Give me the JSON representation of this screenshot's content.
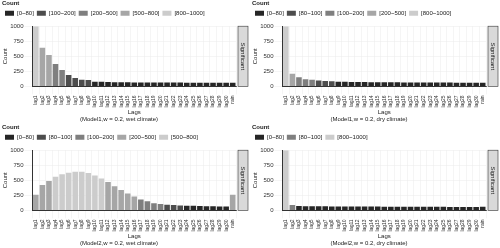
{
  "chart_data": [
    {
      "type": "bar",
      "title": "(Model1,w = 0.2, wet climate)",
      "x_label": "Lags",
      "y_label": "Count",
      "legend_title": "Count",
      "facet_label": "Significant",
      "legend": "top-left",
      "stacked": true,
      "grid": true,
      "categories": [
        "lag1",
        "lag2",
        "lag3",
        "lag4",
        "lag5",
        "lag6",
        "lag7",
        "lag8",
        "lag9",
        "lag10",
        "lag11",
        "lag12",
        "lag13",
        "lag14",
        "lag15",
        "lag16",
        "lag17",
        "lag18",
        "lag19",
        "lag20",
        "lag21",
        "lag22",
        "lag23",
        "lag24",
        "lag25",
        "lag26",
        "lag27",
        "lag28",
        "lag29",
        "lag30",
        "rain"
      ],
      "ylim": [
        0,
        1000
      ],
      "yticks": [
        0,
        250,
        500,
        750,
        1000
      ],
      "series": [
        {
          "name": "[0~80]",
          "color": "#262626",
          "values": [
            null,
            null,
            null,
            null,
            null,
            null,
            null,
            null,
            null,
            78,
            75,
            72,
            70,
            68,
            68,
            66,
            66,
            65,
            65,
            64,
            64,
            63,
            63,
            62,
            62,
            62,
            61,
            61,
            60,
            60,
            60
          ]
        },
        {
          "name": "[100~200]",
          "color": "#4d4d4d",
          "values": [
            null,
            null,
            null,
            null,
            null,
            190,
            140,
            110,
            105,
            null,
            null,
            null,
            null,
            null,
            null,
            null,
            null,
            null,
            null,
            null,
            null,
            null,
            null,
            null,
            null,
            null,
            null,
            null,
            null,
            null,
            null
          ]
        },
        {
          "name": "[200~500]",
          "color": "#7f7f7f",
          "values": [
            null,
            null,
            null,
            370,
            270,
            null,
            null,
            null,
            null,
            null,
            null,
            null,
            null,
            null,
            null,
            null,
            null,
            null,
            null,
            null,
            null,
            null,
            null,
            null,
            null,
            null,
            null,
            null,
            null,
            null,
            null
          ]
        },
        {
          "name": "[500~800]",
          "color": "#a6a6a6",
          "values": [
            null,
            640,
            520,
            null,
            null,
            null,
            null,
            null,
            null,
            null,
            null,
            null,
            null,
            null,
            null,
            null,
            null,
            null,
            null,
            null,
            null,
            null,
            null,
            null,
            null,
            null,
            null,
            null,
            null,
            null,
            null
          ]
        },
        {
          "name": "[800~1000]",
          "color": "#cccccc",
          "values": [
            1000,
            null,
            null,
            null,
            null,
            null,
            null,
            null,
            null,
            null,
            null,
            null,
            null,
            null,
            null,
            null,
            null,
            null,
            null,
            null,
            null,
            null,
            null,
            null,
            null,
            null,
            null,
            null,
            null,
            null,
            null
          ]
        }
      ]
    },
    {
      "type": "bar",
      "title": "(Model1,w = 0.2, dry climate)",
      "x_label": "Lags",
      "y_label": "Count",
      "legend_title": "Count",
      "facet_label": "Significant",
      "legend": "top-left",
      "stacked": true,
      "grid": true,
      "categories": [
        "lag1",
        "lag2",
        "lag3",
        "lag4",
        "lag5",
        "lag6",
        "lag7",
        "lag8",
        "lag9",
        "lag10",
        "lag11",
        "lag12",
        "lag13",
        "lag14",
        "lag15",
        "lag16",
        "lag17",
        "lag18",
        "lag19",
        "lag20",
        "lag21",
        "lag22",
        "lag23",
        "lag24",
        "lag25",
        "lag26",
        "lag27",
        "lag28",
        "lag29",
        "lag30",
        "rain"
      ],
      "ylim": [
        0,
        1000
      ],
      "yticks": [
        0,
        250,
        500,
        750,
        1000
      ],
      "series": [
        {
          "name": "[0~80]",
          "color": "#262626",
          "values": [
            null,
            null,
            null,
            null,
            null,
            null,
            null,
            null,
            78,
            76,
            74,
            72,
            71,
            70,
            69,
            68,
            68,
            67,
            66,
            66,
            65,
            65,
            64,
            64,
            63,
            63,
            62,
            62,
            61,
            61,
            60
          ]
        },
        {
          "name": "[80~100]",
          "color": "#4d4d4d",
          "values": [
            null,
            null,
            null,
            null,
            null,
            98,
            90,
            85,
            null,
            null,
            null,
            null,
            null,
            null,
            null,
            null,
            null,
            null,
            null,
            null,
            null,
            null,
            null,
            null,
            null,
            null,
            null,
            null,
            null,
            null,
            null
          ]
        },
        {
          "name": "[100~200]",
          "color": "#7f7f7f",
          "values": [
            null,
            null,
            150,
            120,
            110,
            null,
            null,
            null,
            null,
            null,
            null,
            null,
            null,
            null,
            null,
            null,
            null,
            null,
            null,
            null,
            null,
            null,
            null,
            null,
            null,
            null,
            null,
            null,
            null,
            null,
            null
          ]
        },
        {
          "name": "[200~500]",
          "color": "#a6a6a6",
          "values": [
            null,
            210,
            null,
            null,
            null,
            null,
            null,
            null,
            null,
            null,
            null,
            null,
            null,
            null,
            null,
            null,
            null,
            null,
            null,
            null,
            null,
            null,
            null,
            null,
            null,
            null,
            null,
            null,
            null,
            null,
            null
          ]
        },
        {
          "name": "[800~1000]",
          "color": "#cccccc",
          "values": [
            1000,
            null,
            null,
            null,
            null,
            null,
            null,
            null,
            null,
            null,
            null,
            null,
            null,
            null,
            null,
            null,
            null,
            null,
            null,
            null,
            null,
            null,
            null,
            null,
            null,
            null,
            null,
            null,
            null,
            null,
            null
          ]
        }
      ]
    },
    {
      "type": "bar",
      "title": "(Model2,w = 0.2, wet climate)",
      "x_label": "Lags",
      "y_label": "Count",
      "legend_title": "Count",
      "facet_label": "Significant",
      "legend": "top-left",
      "stacked": true,
      "grid": true,
      "categories": [
        "lag1",
        "lag2",
        "lag3",
        "lag4",
        "lag5",
        "lag6",
        "lag7",
        "lag8",
        "lag9",
        "lag10",
        "lag11",
        "lag12",
        "lag13",
        "lag14",
        "lag15",
        "lag16",
        "lag17",
        "lag18",
        "lag19",
        "lag20",
        "lag21",
        "lag22",
        "lag23",
        "lag24",
        "lag25",
        "lag26",
        "lag27",
        "lag28",
        "lag29",
        "lag30",
        "rain"
      ],
      "ylim": [
        0,
        1000
      ],
      "yticks": [
        0,
        250,
        500,
        750,
        1000
      ],
      "series": [
        {
          "name": "[0~80]",
          "color": "#262626",
          "values": [
            null,
            null,
            null,
            null,
            null,
            null,
            null,
            null,
            null,
            null,
            null,
            null,
            null,
            null,
            null,
            null,
            null,
            null,
            null,
            null,
            null,
            null,
            null,
            78,
            75,
            72,
            70,
            68,
            66,
            65,
            null
          ]
        },
        {
          "name": "[80~100]",
          "color": "#4d4d4d",
          "values": [
            null,
            null,
            null,
            null,
            null,
            null,
            null,
            null,
            null,
            null,
            null,
            null,
            null,
            null,
            null,
            null,
            null,
            null,
            null,
            null,
            95,
            88,
            82,
            null,
            null,
            null,
            null,
            null,
            null,
            null,
            null
          ]
        },
        {
          "name": "[100~200]",
          "color": "#7f7f7f",
          "values": [
            null,
            null,
            null,
            null,
            null,
            null,
            null,
            null,
            null,
            null,
            null,
            null,
            null,
            null,
            null,
            null,
            180,
            150,
            120,
            105,
            null,
            null,
            null,
            null,
            null,
            null,
            null,
            null,
            null,
            null,
            null
          ]
        },
        {
          "name": "[200~500]",
          "color": "#a6a6a6",
          "values": [
            260,
            420,
            490,
            null,
            null,
            null,
            null,
            null,
            null,
            null,
            null,
            470,
            400,
            340,
            280,
            230,
            null,
            null,
            null,
            null,
            null,
            null,
            null,
            null,
            null,
            null,
            null,
            null,
            null,
            null,
            260
          ]
        },
        {
          "name": "[500~800]",
          "color": "#cccccc",
          "values": [
            null,
            null,
            null,
            560,
            600,
            625,
            640,
            640,
            620,
            580,
            530,
            null,
            null,
            null,
            null,
            null,
            null,
            null,
            null,
            null,
            null,
            null,
            null,
            null,
            null,
            null,
            null,
            null,
            null,
            null,
            null
          ]
        }
      ]
    },
    {
      "type": "bar",
      "title": "(Model2,w = 0.2, dry climate)",
      "x_label": "Lags",
      "y_label": "Count",
      "legend_title": "Count",
      "facet_label": "Significant",
      "legend": "top-left",
      "stacked": true,
      "grid": true,
      "categories": [
        "lag1",
        "lag2",
        "lag3",
        "lag4",
        "lag5",
        "lag6",
        "lag7",
        "lag8",
        "lag9",
        "lag10",
        "lag11",
        "lag12",
        "lag13",
        "lag14",
        "lag15",
        "lag16",
        "lag17",
        "lag18",
        "lag19",
        "lag20",
        "lag21",
        "lag22",
        "lag23",
        "lag24",
        "lag25",
        "lag26",
        "lag27",
        "lag28",
        "lag29",
        "lag30",
        "rain"
      ],
      "ylim": [
        0,
        1000
      ],
      "yticks": [
        0,
        250,
        500,
        750,
        1000
      ],
      "series": [
        {
          "name": "[0~80]",
          "color": "#262626",
          "values": [
            null,
            null,
            72,
            70,
            69,
            68,
            67,
            66,
            66,
            65,
            65,
            64,
            64,
            63,
            63,
            62,
            62,
            62,
            61,
            61,
            60,
            60,
            60,
            59,
            59,
            58,
            58,
            58,
            57,
            57,
            62
          ]
        },
        {
          "name": "[80~100]",
          "color": "#7f7f7f",
          "values": [
            null,
            90,
            null,
            null,
            null,
            null,
            null,
            null,
            null,
            null,
            null,
            null,
            null,
            null,
            null,
            null,
            null,
            null,
            null,
            null,
            null,
            null,
            null,
            null,
            null,
            null,
            null,
            null,
            null,
            null,
            null
          ]
        },
        {
          "name": "[800~1000]",
          "color": "#cccccc",
          "values": [
            1000,
            null,
            null,
            null,
            null,
            null,
            null,
            null,
            null,
            null,
            null,
            null,
            null,
            null,
            null,
            null,
            null,
            null,
            null,
            null,
            null,
            null,
            null,
            null,
            null,
            null,
            null,
            null,
            null,
            null,
            null
          ]
        }
      ]
    }
  ]
}
